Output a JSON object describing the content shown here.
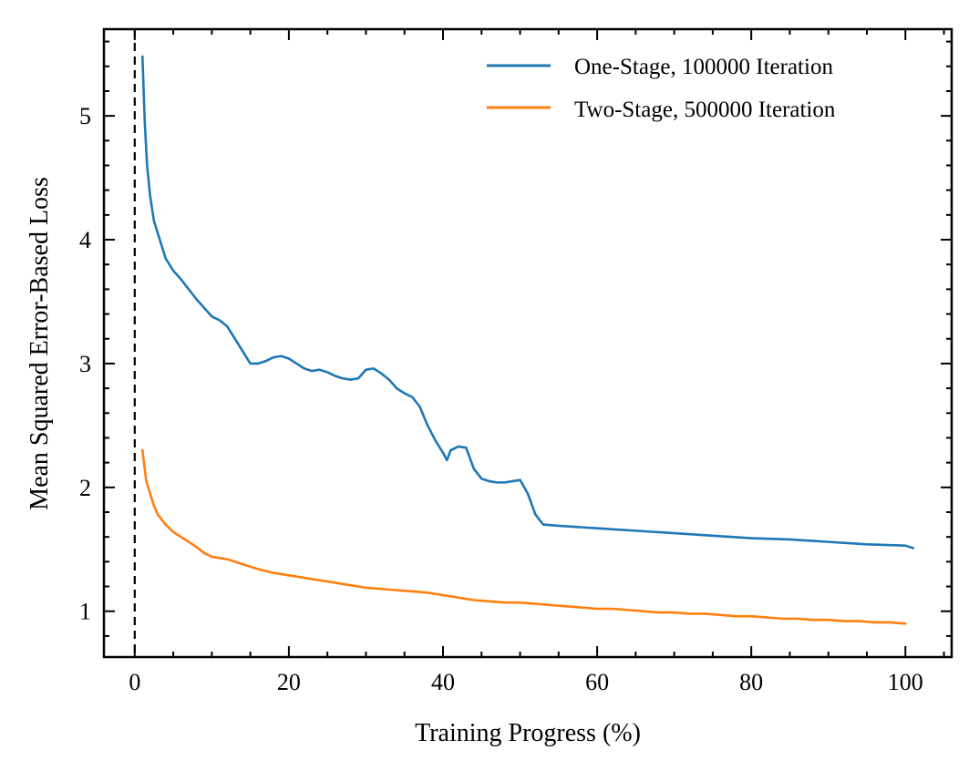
{
  "chart_data": {
    "type": "line",
    "title": "",
    "xlabel": "Training Progress (%)",
    "ylabel": "Mean Squared Error-Based Loss",
    "xlim": [
      -4,
      106
    ],
    "ylim": [
      0.63,
      5.7
    ],
    "xticks": [
      0,
      20,
      40,
      60,
      80,
      100
    ],
    "yticks": [
      1,
      2,
      3,
      4,
      5
    ],
    "x_tick_labels": [
      "0",
      "20",
      "40",
      "60",
      "80",
      "100"
    ],
    "y_tick_labels": [
      "1",
      "2",
      "3",
      "4",
      "5"
    ],
    "grid": false,
    "legend_position": "top-right",
    "vertical_reference_line": {
      "x": 0,
      "style": "dashed",
      "color": "#000000"
    },
    "series": [
      {
        "name": "One-Stage, 100000 Iteration",
        "color": "#1f77b4",
        "x": [
          1,
          1.3,
          1.6,
          2,
          2.5,
          3,
          3.5,
          4,
          5,
          6,
          7,
          8,
          9,
          10,
          11,
          12,
          13,
          14,
          15,
          16,
          17,
          18,
          19,
          20,
          21,
          22,
          23,
          24,
          25,
          26,
          27,
          28,
          29,
          30,
          31,
          32,
          33,
          34,
          35,
          36,
          37,
          38,
          39,
          40,
          40.5,
          41,
          42,
          43,
          44,
          45,
          46,
          47,
          48,
          49,
          50,
          51,
          52,
          53,
          55,
          60,
          65,
          70,
          75,
          80,
          85,
          90,
          95,
          100,
          101
        ],
        "y": [
          5.48,
          4.95,
          4.6,
          4.35,
          4.15,
          4.05,
          3.95,
          3.85,
          3.75,
          3.68,
          3.6,
          3.52,
          3.45,
          3.38,
          3.35,
          3.3,
          3.2,
          3.1,
          3.0,
          3.0,
          3.02,
          3.05,
          3.06,
          3.04,
          3.0,
          2.96,
          2.94,
          2.95,
          2.93,
          2.9,
          2.88,
          2.87,
          2.88,
          2.95,
          2.96,
          2.92,
          2.87,
          2.8,
          2.76,
          2.73,
          2.65,
          2.5,
          2.38,
          2.28,
          2.22,
          2.3,
          2.33,
          2.32,
          2.15,
          2.07,
          2.05,
          2.04,
          2.04,
          2.05,
          2.06,
          1.95,
          1.78,
          1.7,
          1.69,
          1.67,
          1.65,
          1.63,
          1.61,
          1.59,
          1.58,
          1.56,
          1.54,
          1.53,
          1.51
        ]
      },
      {
        "name": "Two-Stage, 500000 Iteration",
        "color": "#ff7f0e",
        "x": [
          1,
          1.5,
          2,
          2.5,
          3,
          4,
          5,
          6,
          7,
          8,
          9,
          10,
          12,
          14,
          16,
          18,
          20,
          22,
          24,
          26,
          28,
          30,
          32,
          34,
          36,
          38,
          40,
          42,
          44,
          46,
          48,
          50,
          52,
          54,
          56,
          58,
          60,
          62,
          64,
          66,
          68,
          70,
          72,
          74,
          76,
          78,
          80,
          82,
          84,
          86,
          88,
          90,
          92,
          94,
          96,
          98,
          100
        ],
        "y": [
          2.3,
          2.05,
          1.95,
          1.85,
          1.78,
          1.7,
          1.64,
          1.6,
          1.56,
          1.52,
          1.47,
          1.44,
          1.42,
          1.38,
          1.34,
          1.31,
          1.29,
          1.27,
          1.25,
          1.23,
          1.21,
          1.19,
          1.18,
          1.17,
          1.16,
          1.15,
          1.13,
          1.11,
          1.09,
          1.08,
          1.07,
          1.07,
          1.06,
          1.05,
          1.04,
          1.03,
          1.02,
          1.02,
          1.01,
          1.0,
          0.99,
          0.99,
          0.98,
          0.98,
          0.97,
          0.96,
          0.96,
          0.95,
          0.94,
          0.94,
          0.93,
          0.93,
          0.92,
          0.92,
          0.91,
          0.91,
          0.9
        ]
      }
    ]
  }
}
